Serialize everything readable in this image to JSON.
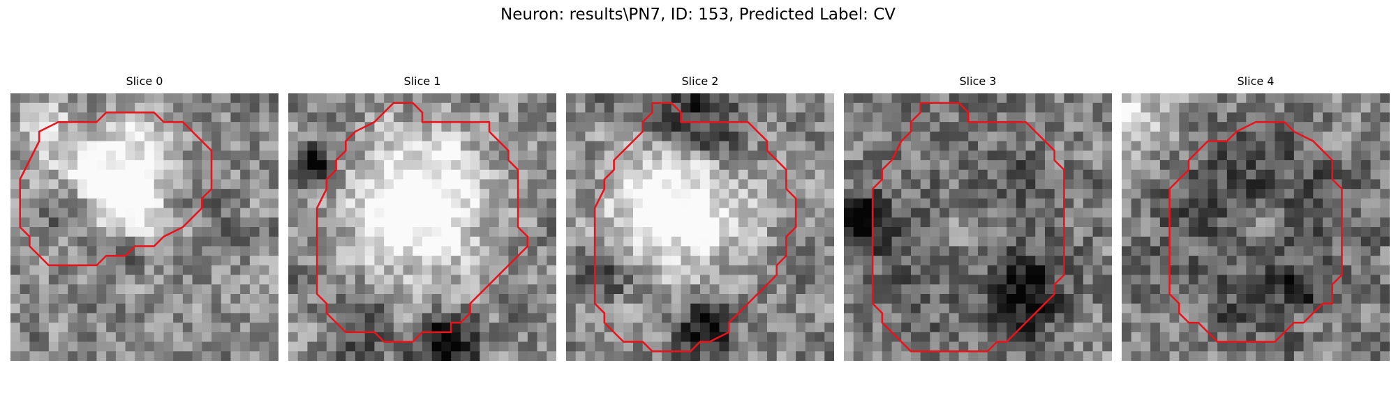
{
  "figure": {
    "title": "Neuron: results\\PN7, ID: 153, Predicted Label: CV"
  },
  "panels": [
    {
      "title": "Slice 0",
      "seed": 11,
      "contour": [
        [
          13,
          2
        ],
        [
          15,
          2
        ],
        [
          16,
          3
        ],
        [
          18,
          3
        ],
        [
          19,
          4
        ],
        [
          20,
          5
        ],
        [
          21,
          6
        ],
        [
          21,
          8
        ],
        [
          21,
          10
        ],
        [
          20,
          11
        ],
        [
          20,
          12
        ],
        [
          19,
          13
        ],
        [
          18,
          14
        ],
        [
          16,
          15
        ],
        [
          15,
          16
        ],
        [
          13,
          16
        ],
        [
          12,
          17
        ],
        [
          10,
          17
        ],
        [
          9,
          18
        ],
        [
          7,
          18
        ],
        [
          4,
          18
        ],
        [
          3,
          17
        ],
        [
          2,
          16
        ],
        [
          2,
          15
        ],
        [
          1,
          14
        ],
        [
          1,
          13
        ],
        [
          1,
          11
        ],
        [
          1,
          9
        ],
        [
          2,
          7
        ],
        [
          3,
          5
        ],
        [
          3,
          4
        ],
        [
          5,
          3
        ],
        [
          7,
          3
        ],
        [
          9,
          3
        ],
        [
          10,
          2
        ],
        [
          12,
          2
        ]
      ],
      "blobs": [
        [
          11,
          9,
          6,
          0.72
        ],
        [
          6,
          12,
          3,
          -0.35
        ],
        [
          17,
          10,
          3,
          -0.3
        ],
        [
          10,
          16,
          3,
          -0.3
        ],
        [
          3,
          3,
          3,
          0.25
        ]
      ]
    },
    {
      "title": "Slice 1",
      "seed": 23,
      "contour": [
        [
          12,
          1
        ],
        [
          13,
          1
        ],
        [
          14,
          2
        ],
        [
          14,
          3
        ],
        [
          21,
          3
        ],
        [
          21,
          4
        ],
        [
          22,
          5
        ],
        [
          23,
          6
        ],
        [
          23,
          7
        ],
        [
          24,
          8
        ],
        [
          24,
          9
        ],
        [
          24,
          10
        ],
        [
          24,
          11
        ],
        [
          24,
          13
        ],
        [
          24,
          14
        ],
        [
          25,
          15
        ],
        [
          25,
          16
        ],
        [
          24,
          17
        ],
        [
          23,
          18
        ],
        [
          22,
          19
        ],
        [
          21,
          20
        ],
        [
          20,
          21
        ],
        [
          19,
          22
        ],
        [
          19,
          23
        ],
        [
          18,
          24
        ],
        [
          17,
          24
        ],
        [
          17,
          25
        ],
        [
          15,
          25
        ],
        [
          14,
          25
        ],
        [
          13,
          26
        ],
        [
          12,
          26
        ],
        [
          10,
          26
        ],
        [
          9,
          25
        ],
        [
          6,
          25
        ],
        [
          5,
          24
        ],
        [
          4,
          23
        ],
        [
          4,
          22
        ],
        [
          3,
          21
        ],
        [
          3,
          20
        ],
        [
          3,
          19
        ],
        [
          3,
          18
        ],
        [
          3,
          17
        ],
        [
          3,
          15
        ],
        [
          3,
          13
        ],
        [
          3,
          12
        ],
        [
          4,
          10
        ],
        [
          4,
          9
        ],
        [
          5,
          8
        ],
        [
          5,
          7
        ],
        [
          6,
          6
        ],
        [
          6,
          5
        ],
        [
          7,
          4
        ],
        [
          9,
          3
        ],
        [
          10,
          2
        ],
        [
          11,
          1
        ]
      ],
      "blobs": [
        [
          13,
          11,
          7,
          0.7
        ],
        [
          2,
          7,
          2,
          -0.55
        ],
        [
          16,
          26,
          3,
          -0.6
        ],
        [
          7,
          24,
          3,
          -0.25
        ]
      ]
    },
    {
      "title": "Slice 2",
      "seed": 37,
      "contour": [
        [
          9,
          1
        ],
        [
          11,
          1
        ],
        [
          12,
          2
        ],
        [
          12,
          3
        ],
        [
          19,
          3
        ],
        [
          20,
          4
        ],
        [
          21,
          5
        ],
        [
          21,
          6
        ],
        [
          22,
          7
        ],
        [
          23,
          8
        ],
        [
          23,
          10
        ],
        [
          24,
          11
        ],
        [
          24,
          12
        ],
        [
          24,
          14
        ],
        [
          23,
          15
        ],
        [
          23,
          16
        ],
        [
          23,
          17
        ],
        [
          22,
          18
        ],
        [
          22,
          19
        ],
        [
          21,
          20
        ],
        [
          20,
          21
        ],
        [
          19,
          22
        ],
        [
          18,
          23
        ],
        [
          17,
          24
        ],
        [
          17,
          25
        ],
        [
          15,
          26
        ],
        [
          14,
          26
        ],
        [
          13,
          27
        ],
        [
          9,
          27
        ],
        [
          8,
          26
        ],
        [
          6,
          26
        ],
        [
          5,
          25
        ],
        [
          4,
          24
        ],
        [
          4,
          23
        ],
        [
          3,
          22
        ],
        [
          3,
          21
        ],
        [
          3,
          19
        ],
        [
          3,
          16
        ],
        [
          3,
          14
        ],
        [
          3,
          12
        ],
        [
          4,
          10
        ],
        [
          4,
          9
        ],
        [
          5,
          8
        ],
        [
          5,
          7
        ],
        [
          6,
          6
        ],
        [
          7,
          5
        ],
        [
          8,
          4
        ],
        [
          8,
          3
        ],
        [
          9,
          2
        ]
      ],
      "blobs": [
        [
          11,
          11,
          7,
          0.65
        ],
        [
          14,
          24,
          3,
          -0.5
        ],
        [
          13,
          3,
          5,
          -0.45
        ],
        [
          4,
          18,
          3,
          -0.25
        ]
      ]
    },
    {
      "title": "Slice 3",
      "seed": 53,
      "contour": [
        [
          8,
          1
        ],
        [
          12,
          1
        ],
        [
          13,
          2
        ],
        [
          13,
          3
        ],
        [
          19,
          3
        ],
        [
          20,
          4
        ],
        [
          21,
          5
        ],
        [
          22,
          6
        ],
        [
          22,
          7
        ],
        [
          23,
          8
        ],
        [
          23,
          10
        ],
        [
          23,
          12
        ],
        [
          23,
          14
        ],
        [
          23,
          16
        ],
        [
          23,
          18
        ],
        [
          23,
          19
        ],
        [
          22,
          20
        ],
        [
          22,
          21
        ],
        [
          21,
          22
        ],
        [
          20,
          23
        ],
        [
          19,
          24
        ],
        [
          18,
          25
        ],
        [
          17,
          26
        ],
        [
          16,
          26
        ],
        [
          15,
          27
        ],
        [
          13,
          27
        ],
        [
          10,
          27
        ],
        [
          7,
          27
        ],
        [
          6,
          26
        ],
        [
          5,
          25
        ],
        [
          4,
          24
        ],
        [
          4,
          23
        ],
        [
          3,
          22
        ],
        [
          3,
          21
        ],
        [
          3,
          19
        ],
        [
          3,
          16
        ],
        [
          3,
          14
        ],
        [
          3,
          12
        ],
        [
          3,
          10
        ],
        [
          4,
          9
        ],
        [
          4,
          8
        ],
        [
          5,
          7
        ],
        [
          6,
          5
        ],
        [
          7,
          4
        ],
        [
          7,
          3
        ],
        [
          8,
          2
        ]
      ],
      "blobs": [
        [
          13,
          15,
          10,
          -0.28
        ],
        [
          12,
          14,
          5,
          0.3
        ],
        [
          1,
          13,
          3,
          -0.55
        ],
        [
          19,
          21,
          3,
          -0.4
        ]
      ]
    },
    {
      "title": "Slice 4",
      "seed": 71,
      "contour": [
        [
          14,
          3
        ],
        [
          17,
          3
        ],
        [
          18,
          4
        ],
        [
          20,
          5
        ],
        [
          21,
          6
        ],
        [
          22,
          7
        ],
        [
          22,
          9
        ],
        [
          23,
          10
        ],
        [
          23,
          12
        ],
        [
          23,
          14
        ],
        [
          23,
          17
        ],
        [
          23,
          19
        ],
        [
          22,
          20
        ],
        [
          22,
          22
        ],
        [
          21,
          22
        ],
        [
          20,
          23
        ],
        [
          19,
          24
        ],
        [
          18,
          24
        ],
        [
          17,
          25
        ],
        [
          16,
          26
        ],
        [
          12,
          26
        ],
        [
          10,
          26
        ],
        [
          9,
          25
        ],
        [
          8,
          24
        ],
        [
          7,
          24
        ],
        [
          6,
          23
        ],
        [
          6,
          22
        ],
        [
          5,
          21
        ],
        [
          5,
          20
        ],
        [
          5,
          18
        ],
        [
          5,
          16
        ],
        [
          5,
          14
        ],
        [
          5,
          12
        ],
        [
          5,
          10
        ],
        [
          6,
          9
        ],
        [
          7,
          8
        ],
        [
          7,
          7
        ],
        [
          8,
          6
        ],
        [
          9,
          5
        ],
        [
          11,
          5
        ],
        [
          12,
          4
        ]
      ],
      "blobs": [
        [
          14,
          14,
          9,
          -0.45
        ],
        [
          14,
          14,
          5,
          0.4
        ],
        [
          18,
          20,
          2,
          -0.3
        ],
        [
          2,
          2,
          4,
          0.3
        ]
      ]
    }
  ]
}
